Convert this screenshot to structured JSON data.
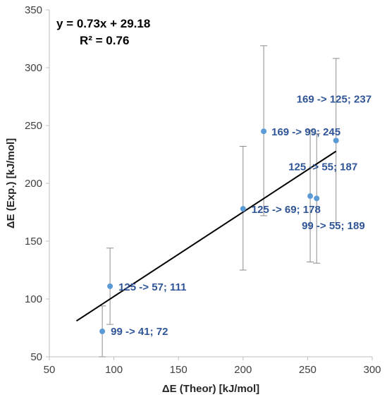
{
  "chart_data": {
    "type": "scatter",
    "xlabel": "ΔE (Theor) [kJ/mol]",
    "ylabel": "ΔE (Exp.) [kJ/mol]",
    "xlim": [
      50,
      300
    ],
    "ylim": [
      50,
      350
    ],
    "x_ticks": [
      "50",
      "100",
      "150",
      "200",
      "250",
      "300"
    ],
    "y_ticks": [
      "50",
      "100",
      "150",
      "200",
      "250",
      "300",
      "350"
    ],
    "grid": false,
    "marker_color": "#5b9bd5",
    "label_color": "#2f5597",
    "points": [
      {
        "x": 91,
        "y": 72,
        "err_low": 22,
        "err_high": 22,
        "label": "99 -> 41; 72"
      },
      {
        "x": 97,
        "y": 111,
        "err_low": 33,
        "err_high": 33,
        "label": "125 -> 57; 111"
      },
      {
        "x": 200,
        "y": 178,
        "err_low": 53,
        "err_high": 54,
        "label": "125 -> 69; 178"
      },
      {
        "x": 216,
        "y": 245,
        "err_low": 73,
        "err_high": 74,
        "label": "169 -> 99; 245"
      },
      {
        "x": 252,
        "y": 189,
        "err_low": 57,
        "err_high": 57,
        "label": "99 -> 55; 189"
      },
      {
        "x": 257,
        "y": 187,
        "err_low": 56,
        "err_high": 56,
        "label": "125 -> 55; 187"
      },
      {
        "x": 272,
        "y": 237,
        "err_low": 71,
        "err_high": 71,
        "label": "169 -> 125; 237"
      }
    ],
    "trendline": {
      "slope": 0.73,
      "intercept": 29.18,
      "x_range": [
        71,
        272
      ],
      "equation": "y = 0.73x + 29.18",
      "r_squared": "R² = 0.76"
    }
  }
}
